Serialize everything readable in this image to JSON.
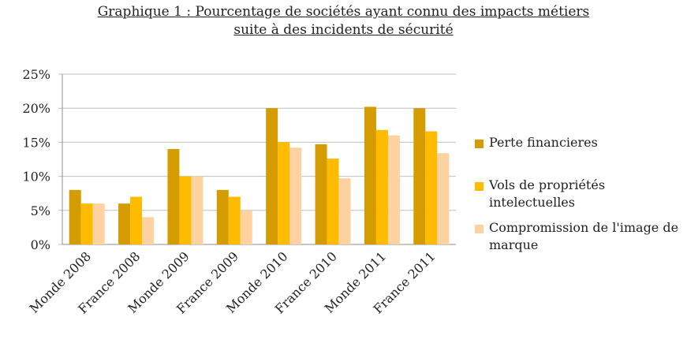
{
  "chart_data": {
    "type": "bar",
    "title_lines": [
      "Graphique 1 : Pourcentage de sociétés ayant connu des impacts métiers",
      "suite à des incidents de sécurité"
    ],
    "categories": [
      "Monde 2008",
      "France 2008",
      "Monde 2009",
      "France 2009",
      "Monde 2010",
      "France 2010",
      "Monde 2011",
      "France 2011"
    ],
    "series": [
      {
        "name": "Perte financieres",
        "color": "#d49c00",
        "values": [
          8,
          6,
          14,
          8,
          20,
          14.7,
          20.2,
          20
        ]
      },
      {
        "name": "Vols de propriétés intelectuelles",
        "color": "#ffbb00",
        "values": [
          6,
          7,
          10,
          7,
          15,
          12.6,
          16.8,
          16.6
        ]
      },
      {
        "name": "Compromission de l'image de marque",
        "color": "#fed3a1",
        "values": [
          6,
          4,
          10,
          5,
          14.2,
          9.7,
          16,
          13.4
        ]
      }
    ],
    "ylim": [
      0,
      25
    ],
    "yticks": [
      0,
      5,
      10,
      15,
      20,
      25
    ],
    "ytick_labels": [
      "0%",
      "5%",
      "10%",
      "15%",
      "20%",
      "25%"
    ],
    "grid": true,
    "legend_position": "right"
  }
}
